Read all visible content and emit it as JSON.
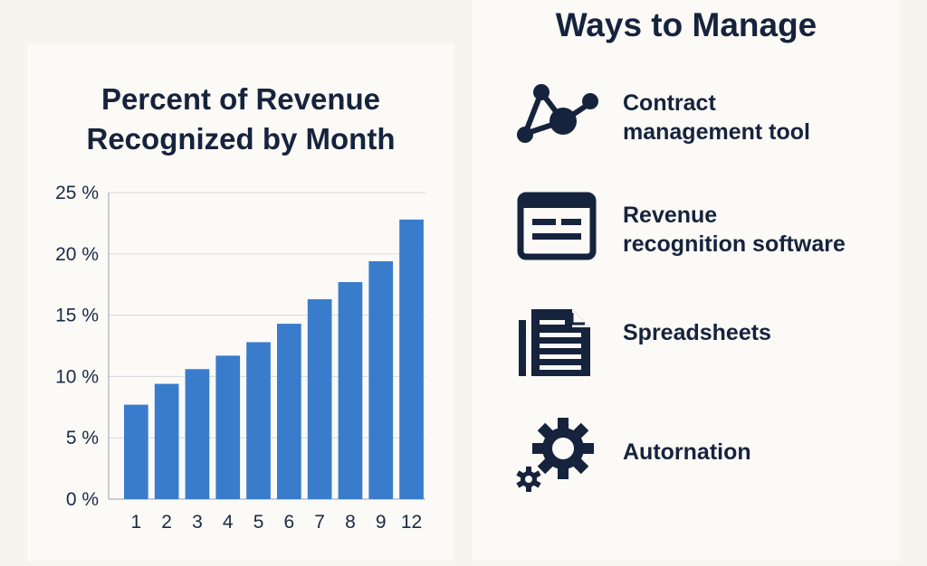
{
  "chart_data": {
    "type": "bar",
    "title_lines": [
      "Percent of Revenue",
      "Recognized by Month"
    ],
    "categories": [
      "1",
      "2",
      "3",
      "4",
      "5",
      "6",
      "7",
      "8",
      "9",
      "12"
    ],
    "values": [
      7.7,
      9.4,
      10.6,
      11.7,
      12.8,
      14.3,
      16.3,
      17.7,
      19.4,
      22.8
    ],
    "y_ticks": [
      0,
      5,
      10,
      15,
      20,
      25
    ],
    "y_tick_labels": [
      "0 %",
      "5 %",
      "10 %",
      "15 %",
      "20 %",
      "25 %"
    ],
    "ylim": [
      0,
      25
    ],
    "xlabel": "",
    "ylabel": "",
    "grid": true,
    "bar_color": "#3a7ccc"
  },
  "ways": {
    "title": "Ways to Manage",
    "items": [
      {
        "lines": [
          "Contract",
          "management tool"
        ],
        "icon": "network-nodes-icon"
      },
      {
        "lines": [
          "Revenue",
          "recognition software"
        ],
        "icon": "software-window-icon"
      },
      {
        "lines": [
          "Spreadsheets"
        ],
        "icon": "document-icon"
      },
      {
        "lines": [
          "Autornation"
        ],
        "icon": "gears-icon"
      }
    ]
  },
  "colors": {
    "icon": "#16233d",
    "text": "#16233d"
  }
}
